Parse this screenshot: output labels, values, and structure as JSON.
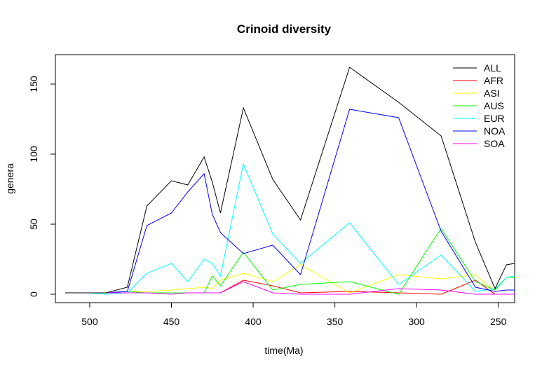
{
  "chart_data": {
    "type": "line",
    "title": "Crinoid diversity",
    "xlabel": "time(Ma)",
    "ylabel": "genera",
    "xlim": [
      521,
      240
    ],
    "ylim": [
      -6,
      171
    ],
    "x_ticks": [
      500,
      450,
      400,
      350,
      300,
      250
    ],
    "y_ticks": [
      0,
      50,
      100,
      150
    ],
    "grid": false,
    "legend_position": "top-right",
    "series": [
      {
        "name": "ALL",
        "color": "#000000",
        "points": [
          [
            515,
            1
          ],
          [
            500,
            1
          ],
          [
            490,
            1
          ],
          [
            477,
            5
          ],
          [
            465,
            63
          ],
          [
            450,
            81
          ],
          [
            440,
            78
          ],
          [
            430,
            98
          ],
          [
            425,
            80
          ],
          [
            420,
            58
          ],
          [
            406,
            133
          ],
          [
            388,
            82
          ],
          [
            371,
            53
          ],
          [
            341,
            162
          ],
          [
            311,
            137
          ],
          [
            285,
            113
          ],
          [
            264,
            37
          ],
          [
            252,
            4
          ],
          [
            245,
            21
          ],
          [
            240,
            22
          ]
        ]
      },
      {
        "name": "AFR",
        "color": "#ff0000",
        "points": [
          [
            515,
            1
          ],
          [
            500,
            1
          ],
          [
            490,
            1
          ],
          [
            477,
            1
          ],
          [
            465,
            1
          ],
          [
            450,
            1
          ],
          [
            440,
            1
          ],
          [
            430,
            1
          ],
          [
            425,
            1
          ],
          [
            420,
            1
          ],
          [
            406,
            10
          ],
          [
            388,
            6
          ],
          [
            371,
            1
          ],
          [
            341,
            2
          ],
          [
            311,
            1
          ],
          [
            285,
            0
          ],
          [
            264,
            10
          ],
          [
            252,
            0
          ],
          [
            245,
            0
          ],
          [
            240,
            0
          ]
        ]
      },
      {
        "name": "ASI",
        "color": "#ffff00",
        "points": [
          [
            515,
            1
          ],
          [
            500,
            1
          ],
          [
            490,
            1
          ],
          [
            477,
            2
          ],
          [
            465,
            2
          ],
          [
            450,
            3
          ],
          [
            440,
            4
          ],
          [
            430,
            5
          ],
          [
            425,
            4
          ],
          [
            420,
            10
          ],
          [
            406,
            15
          ],
          [
            388,
            9
          ],
          [
            371,
            21
          ],
          [
            341,
            1
          ],
          [
            311,
            14
          ],
          [
            285,
            11
          ],
          [
            264,
            14
          ],
          [
            252,
            2
          ],
          [
            245,
            3
          ],
          [
            240,
            3
          ]
        ]
      },
      {
        "name": "AUS",
        "color": "#00ff00",
        "points": [
          [
            515,
            1
          ],
          [
            500,
            1
          ],
          [
            490,
            1
          ],
          [
            477,
            2
          ],
          [
            465,
            1
          ],
          [
            450,
            1
          ],
          [
            440,
            1
          ],
          [
            430,
            1
          ],
          [
            425,
            13
          ],
          [
            420,
            6
          ],
          [
            406,
            30
          ],
          [
            388,
            3
          ],
          [
            371,
            7
          ],
          [
            341,
            9
          ],
          [
            311,
            0
          ],
          [
            285,
            47
          ],
          [
            264,
            9
          ],
          [
            252,
            3
          ],
          [
            245,
            12
          ],
          [
            240,
            12
          ]
        ]
      },
      {
        "name": "EUR",
        "color": "#00ffff",
        "points": [
          [
            515,
            1
          ],
          [
            500,
            1
          ],
          [
            490,
            0
          ],
          [
            477,
            1
          ],
          [
            465,
            15
          ],
          [
            450,
            22
          ],
          [
            440,
            9
          ],
          [
            430,
            25
          ],
          [
            425,
            22
          ],
          [
            420,
            13
          ],
          [
            406,
            93
          ],
          [
            388,
            43
          ],
          [
            371,
            22
          ],
          [
            341,
            51
          ],
          [
            311,
            7
          ],
          [
            285,
            28
          ],
          [
            264,
            2
          ],
          [
            252,
            4
          ],
          [
            245,
            12
          ],
          [
            240,
            13
          ]
        ]
      },
      {
        "name": "NOA",
        "color": "#0000ff",
        "points": [
          [
            515,
            1
          ],
          [
            500,
            1
          ],
          [
            490,
            1
          ],
          [
            477,
            2
          ],
          [
            465,
            49
          ],
          [
            450,
            58
          ],
          [
            440,
            73
          ],
          [
            430,
            86
          ],
          [
            425,
            57
          ],
          [
            420,
            44
          ],
          [
            406,
            29
          ],
          [
            388,
            35
          ],
          [
            371,
            14
          ],
          [
            341,
            132
          ],
          [
            311,
            126
          ],
          [
            285,
            45
          ],
          [
            264,
            5
          ],
          [
            252,
            2
          ],
          [
            245,
            3
          ],
          [
            240,
            3
          ]
        ]
      },
      {
        "name": "SOA",
        "color": "#ff00ff",
        "points": [
          [
            515,
            1
          ],
          [
            500,
            1
          ],
          [
            490,
            1
          ],
          [
            477,
            1
          ],
          [
            465,
            1
          ],
          [
            450,
            0
          ],
          [
            440,
            1
          ],
          [
            430,
            1
          ],
          [
            425,
            1
          ],
          [
            420,
            1
          ],
          [
            406,
            9
          ],
          [
            388,
            1
          ],
          [
            371,
            0
          ],
          [
            341,
            0
          ],
          [
            311,
            4
          ],
          [
            285,
            3
          ],
          [
            264,
            0
          ],
          [
            252,
            0
          ],
          [
            245,
            0
          ],
          [
            240,
            0
          ]
        ]
      }
    ]
  }
}
